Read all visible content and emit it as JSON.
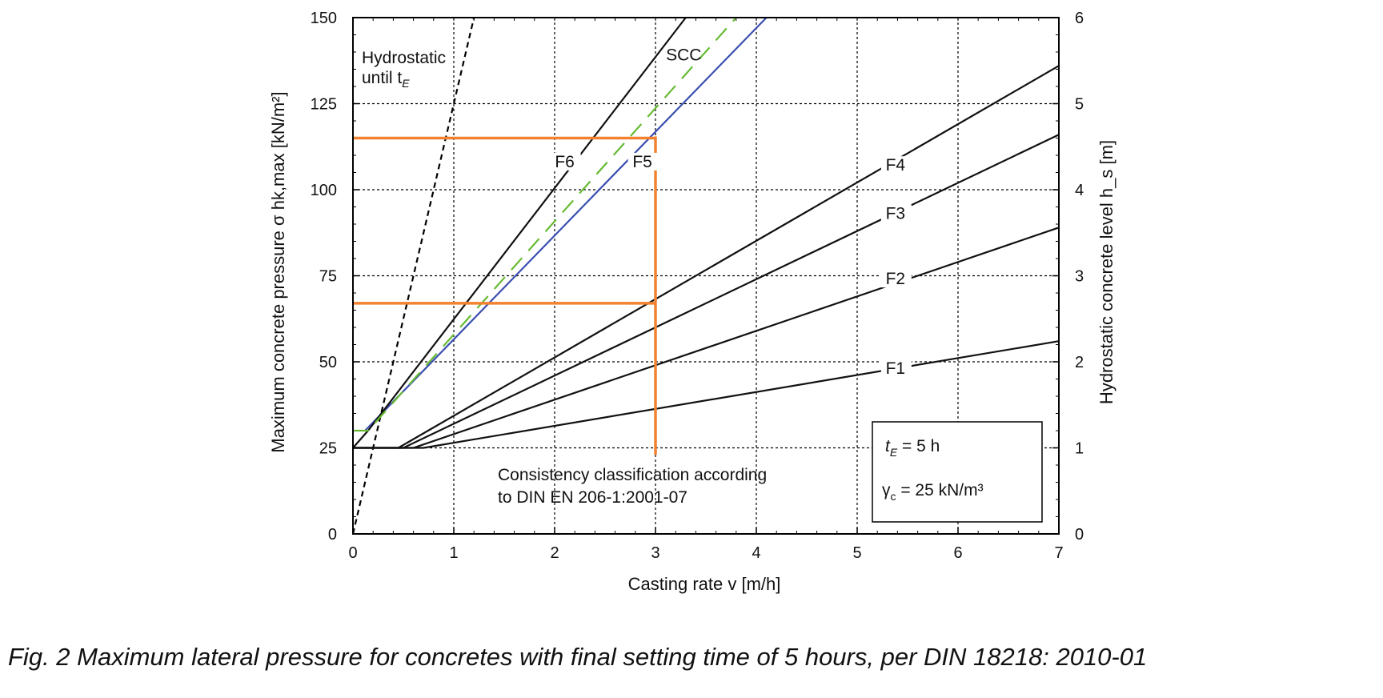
{
  "caption": "Fig. 2 Maximum lateral pressure for concretes with final setting time of 5 hours, per DIN 18218: 2010-01",
  "chart_data": {
    "type": "line",
    "xlabel": "Casting rate v [m/h]",
    "ylabel": "Maximum concrete pressure σ hk,max [kN/m²]",
    "y2label": "Hydrostatic concrete level h_s [m]",
    "xlim": [
      0,
      7
    ],
    "ylim": [
      0,
      150
    ],
    "y2lim": [
      0,
      6
    ],
    "x_ticks": [
      0,
      1,
      2,
      3,
      4,
      5,
      6,
      7
    ],
    "y_ticks": [
      0,
      25,
      50,
      75,
      100,
      125,
      150
    ],
    "y2_ticks": [
      0,
      1,
      2,
      3,
      4,
      5,
      6
    ],
    "grid": true,
    "series": [
      {
        "name": "Hydrostatic until tE",
        "color": "#000000",
        "dashed": true,
        "x": [
          0,
          1.2
        ],
        "y": [
          0,
          150
        ]
      },
      {
        "name": "F1",
        "color": "#111111",
        "x": [
          0,
          0.7,
          7
        ],
        "y": [
          25,
          25,
          56
        ]
      },
      {
        "name": "F2",
        "color": "#111111",
        "x": [
          0,
          0.6,
          7
        ],
        "y": [
          25,
          25,
          89
        ]
      },
      {
        "name": "F3",
        "color": "#111111",
        "x": [
          0,
          0.5,
          7
        ],
        "y": [
          25,
          25,
          116
        ]
      },
      {
        "name": "F4",
        "color": "#111111",
        "x": [
          0,
          0.45,
          7
        ],
        "y": [
          25,
          25,
          136
        ]
      },
      {
        "name": "F5",
        "color": "#3b4fb0",
        "x": [
          0.12,
          4.1
        ],
        "y": [
          30,
          150
        ]
      },
      {
        "name": "F6",
        "color": "#111111",
        "x": [
          0,
          0.15,
          3.3
        ],
        "y": [
          25,
          30,
          150
        ]
      },
      {
        "name": "SCC",
        "color": "#66bb33",
        "dashed": true,
        "x": [
          0,
          0.15,
          3.8
        ],
        "y": [
          30,
          30,
          150
        ]
      }
    ],
    "highlight_lines": {
      "color": "#f28230",
      "x": 3,
      "y_values": [
        115,
        67
      ]
    },
    "series_labels": {
      "F1": "F1",
      "F2": "F2",
      "F3": "F3",
      "F4": "F4",
      "F5": "F5",
      "F6": "F6",
      "SCC": "SCC"
    },
    "annotations": {
      "hydrostatic_line1": "Hydrostatic",
      "hydrostatic_line2": "until t",
      "hydrostatic_sub": "E",
      "consistency_line1": "Consistency classification according",
      "consistency_line2": "to DIN EN 206-1:2001-07",
      "box_te": "t",
      "box_te_sub": "E",
      "box_te_value": " = 5 h",
      "box_gamma": "γ",
      "box_gamma_sub": "c",
      "box_gamma_value": " = 25 kN/m³"
    }
  }
}
